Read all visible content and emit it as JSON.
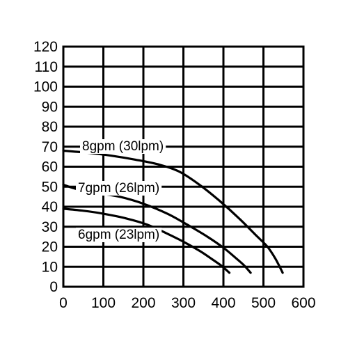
{
  "chart_data": {
    "type": "line",
    "title": "",
    "xlabel": "",
    "ylabel": "",
    "xlim": [
      0,
      600
    ],
    "ylim": [
      0,
      120
    ],
    "xticks": [
      0,
      100,
      200,
      300,
      400,
      500,
      600
    ],
    "yticks": [
      0,
      10,
      20,
      30,
      40,
      50,
      60,
      70,
      80,
      90,
      100,
      110,
      120
    ],
    "grid": true,
    "series": [
      {
        "name": "8gpm (30lpm)",
        "x": [
          0,
          60,
          120,
          180,
          240,
          290,
          340,
          390,
          440,
          480,
          510,
          530,
          548
        ],
        "y": [
          68,
          67,
          65.5,
          63.5,
          61,
          57.5,
          51,
          43,
          34,
          26,
          20,
          14,
          7
        ]
      },
      {
        "name": "7gpm (26lpm)",
        "x": [
          0,
          30,
          80,
          140,
          200,
          260,
          310,
          360,
          400,
          430,
          450,
          468
        ],
        "y": [
          51,
          49,
          47,
          45,
          41.5,
          36.5,
          31,
          25,
          19.5,
          14.5,
          11,
          7
        ]
      },
      {
        "name": "6gpm (23lpm)",
        "x": [
          0,
          50,
          100,
          160,
          210,
          260,
          300,
          340,
          370,
          395,
          415
        ],
        "y": [
          39,
          38,
          36.5,
          34,
          31,
          26.5,
          22.5,
          18,
          14,
          10.5,
          7
        ]
      }
    ]
  }
}
